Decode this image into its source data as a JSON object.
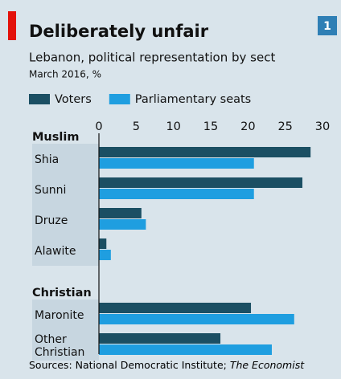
{
  "chart_data": {
    "type": "bar",
    "orientation": "horizontal",
    "title": "Deliberately unfair",
    "subtitle": "Lebanon, political representation by sect",
    "note": "March 2016, %",
    "badge": "1",
    "source": "Sources: National Democratic Institute; ",
    "source_italic": "The Economist",
    "groups": [
      {
        "name": "Muslim",
        "categories": [
          "Shia",
          "Sunni",
          "Druze",
          "Alawite"
        ]
      },
      {
        "name": "Christian",
        "categories": [
          "Maronite",
          "Other Christian"
        ]
      }
    ],
    "series": [
      {
        "name": "Voters",
        "color": "#1b4f63",
        "values": [
          28.4,
          27.3,
          5.7,
          1.0,
          20.4,
          16.3
        ]
      },
      {
        "name": "Parliamentary seats",
        "color": "#1f9ee0",
        "values": [
          20.8,
          20.8,
          6.3,
          1.6,
          26.2,
          23.2
        ]
      }
    ],
    "xlim": [
      0,
      30
    ],
    "xticks": [
      0,
      5,
      10,
      15,
      20,
      25,
      30
    ]
  }
}
